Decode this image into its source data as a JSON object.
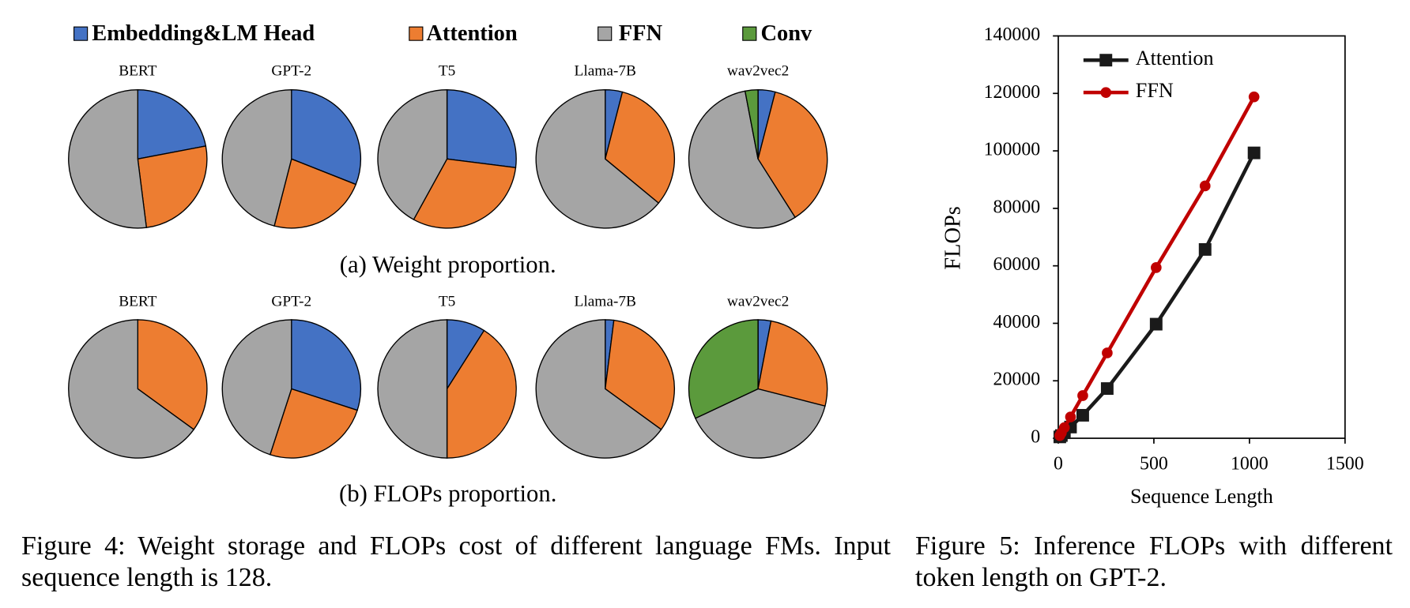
{
  "legend": [
    {
      "name": "Embedding&LM Head",
      "color": "#4472c4"
    },
    {
      "name": "Attention",
      "color": "#ed7d31"
    },
    {
      "name": "FFN",
      "color": "#a5a5a5"
    },
    {
      "name": "Conv",
      "color": "#5b9a3c"
    }
  ],
  "chart_data": [
    {
      "type": "pie",
      "title": "BERT",
      "values": [
        22,
        26,
        52,
        0
      ]
    },
    {
      "type": "pie",
      "title": "GPT-2",
      "values": [
        31,
        23,
        46,
        0
      ]
    },
    {
      "type": "pie",
      "title": "T5",
      "values": [
        27,
        31,
        42,
        0
      ]
    },
    {
      "type": "pie",
      "title": "Llama-7B",
      "values": [
        4,
        32,
        64,
        0
      ]
    },
    {
      "type": "pie",
      "title": "wav2vec2",
      "values": [
        4,
        37,
        56,
        3
      ]
    },
    {
      "type": "pie",
      "title": "BERT",
      "values": [
        0,
        35,
        65,
        0
      ]
    },
    {
      "type": "pie",
      "title": "GPT-2",
      "values": [
        30,
        25,
        45,
        0
      ]
    },
    {
      "type": "pie",
      "title": "T5",
      "values": [
        9,
        41,
        50,
        0
      ]
    },
    {
      "type": "pie",
      "title": "Llama-7B",
      "values": [
        2,
        33,
        65,
        0
      ]
    },
    {
      "type": "pie",
      "title": "wav2vec2",
      "values": [
        3,
        26,
        39,
        32
      ]
    },
    {
      "type": "line",
      "x_label": "Sequence Length",
      "y_label": "FLOPs",
      "x": [
        8,
        16,
        32,
        64,
        128,
        256,
        512,
        768,
        1024
      ],
      "series": [
        {
          "name": "Attention",
          "color": "#1a1a1a",
          "marker": "square",
          "values": [
            470,
            950,
            1900,
            3900,
            8000,
            17300,
            39700,
            65700,
            99300
          ]
        },
        {
          "name": "FFN",
          "color": "#c00000",
          "marker": "circle",
          "values": [
            928,
            1856,
            3712,
            7424,
            14848,
            29696,
            59392,
            87800,
            118800
          ]
        }
      ],
      "xlim": [
        0,
        1500
      ],
      "xticks": [
        0,
        500,
        1000,
        1500
      ],
      "ylim": [
        0,
        140000
      ],
      "yticks": [
        0,
        20000,
        40000,
        60000,
        80000,
        100000,
        120000,
        140000
      ],
      "legend": "upper left"
    }
  ],
  "subcaptions": [
    "(a) Weight proportion.",
    "(b) FLOPs proportion."
  ],
  "captions": [
    "Figure 4: Weight storage and FLOPs cost of different language FMs. Input sequence length is 128.",
    "Figure 5: Inference FLOPs with different token length on GPT-2."
  ]
}
